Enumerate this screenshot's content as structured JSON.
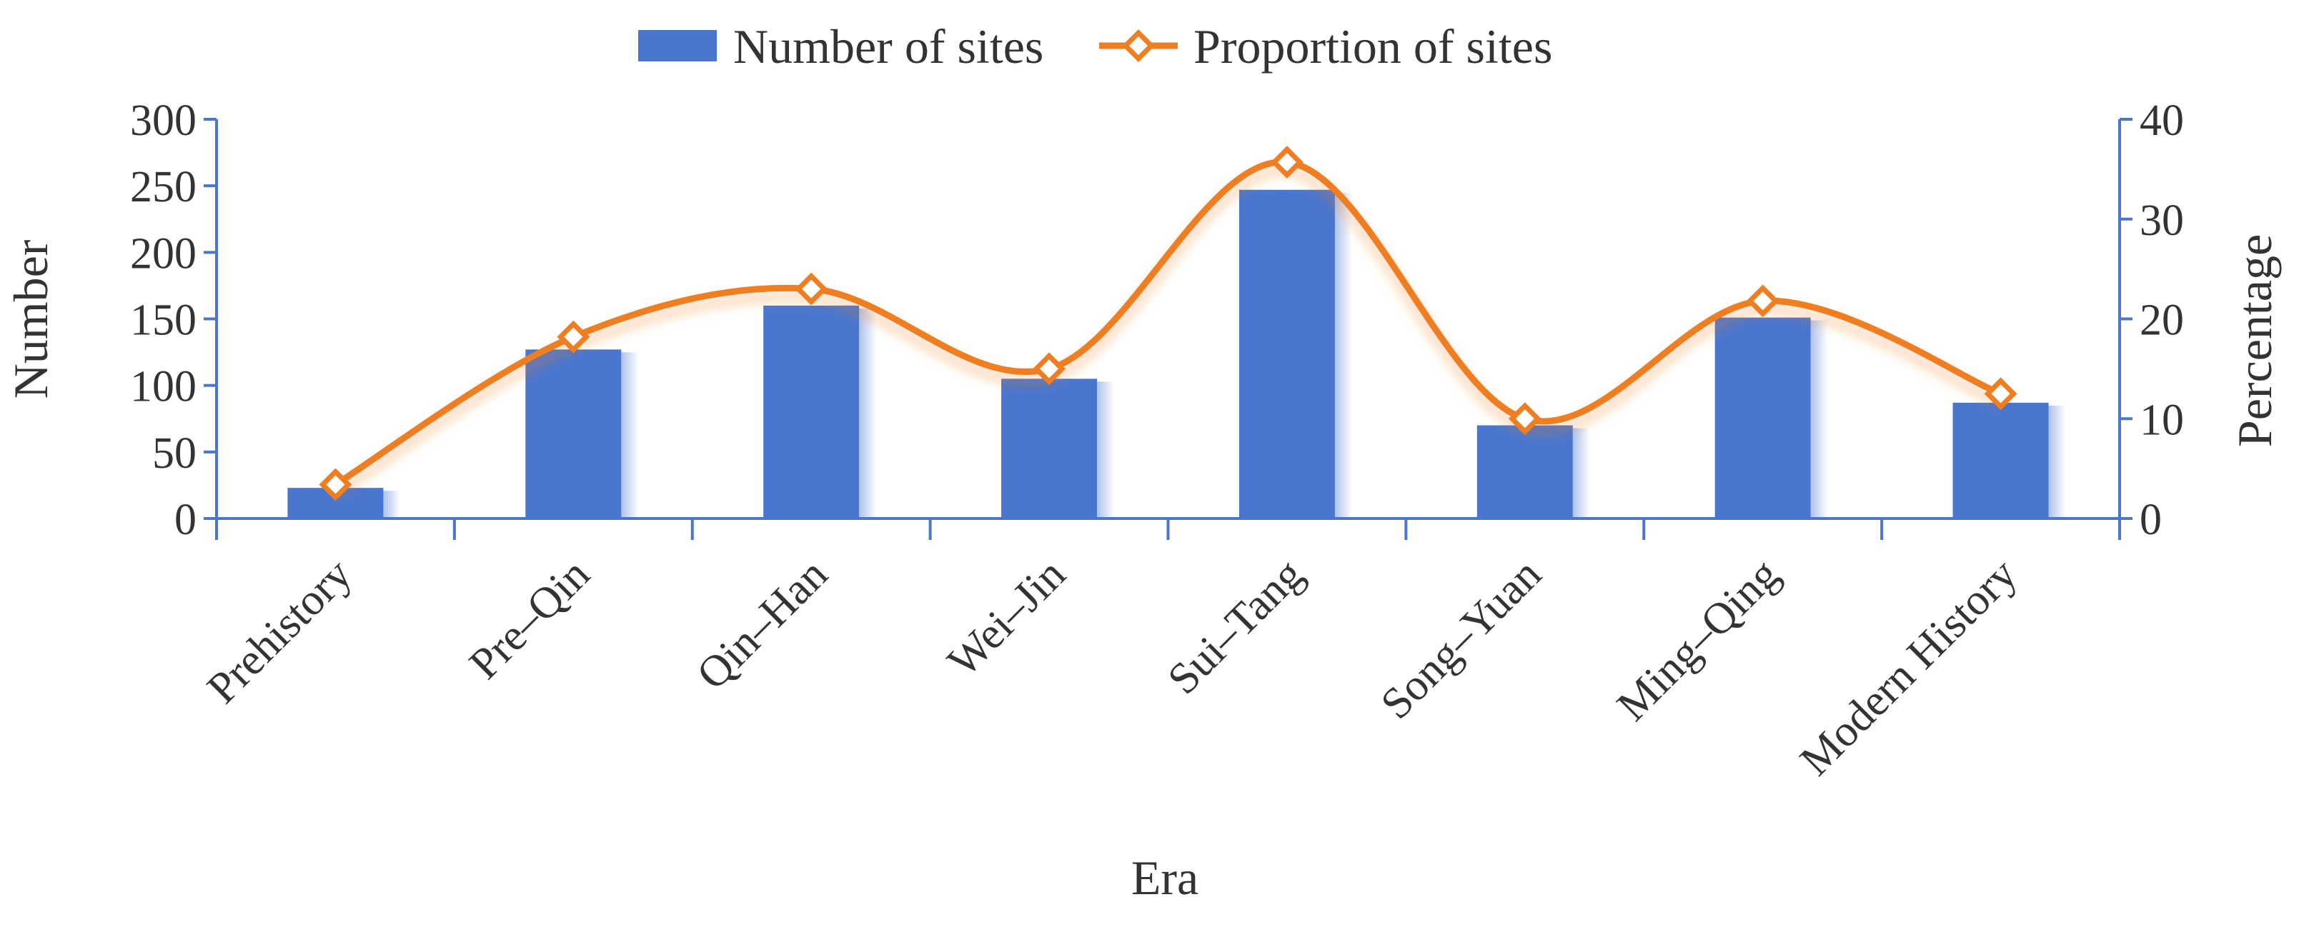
{
  "chart_data": {
    "type": "bar",
    "categories": [
      "Prehistory",
      "Pre–Qin",
      "Qin–Han",
      "Wei–Jin",
      "Sui–Tang",
      "Song–Yuan",
      "Ming–Qing",
      "Modern History"
    ],
    "series": [
      {
        "name": "Number of sites",
        "type": "bar",
        "axis": "left",
        "values": [
          23,
          127,
          160,
          105,
          247,
          70,
          151,
          87
        ]
      },
      {
        "name": "Proportion of sites",
        "type": "line",
        "smooth": true,
        "marker": "diamond",
        "axis": "right",
        "values": [
          3.4,
          18.2,
          23.0,
          15.0,
          35.7,
          10.0,
          21.8,
          12.5
        ]
      }
    ],
    "xlabel": "Era",
    "ylabel": "Number",
    "y2label": "Percentage",
    "ylim": [
      0,
      300
    ],
    "y2lim": [
      0,
      40
    ],
    "yticks": [
      0,
      50,
      100,
      150,
      200,
      250,
      300
    ],
    "y2ticks": [
      0,
      10,
      20,
      30,
      40
    ],
    "legend_position": "top-center",
    "grid": false,
    "colors": {
      "bar": "#4a76cf",
      "line": "#ef7d22",
      "axis": "#4a76cf",
      "text": "#333333"
    }
  }
}
